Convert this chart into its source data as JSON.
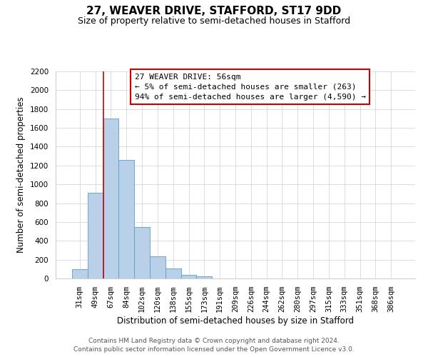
{
  "title": "27, WEAVER DRIVE, STAFFORD, ST17 9DD",
  "subtitle": "Size of property relative to semi-detached houses in Stafford",
  "xlabel": "Distribution of semi-detached houses by size in Stafford",
  "ylabel": "Number of semi-detached properties",
  "categories": [
    "31sqm",
    "49sqm",
    "67sqm",
    "84sqm",
    "102sqm",
    "120sqm",
    "138sqm",
    "155sqm",
    "173sqm",
    "191sqm",
    "209sqm",
    "226sqm",
    "244sqm",
    "262sqm",
    "280sqm",
    "297sqm",
    "315sqm",
    "333sqm",
    "351sqm",
    "368sqm",
    "386sqm"
  ],
  "values": [
    97,
    912,
    1700,
    1258,
    545,
    232,
    103,
    40,
    22,
    0,
    0,
    0,
    0,
    0,
    0,
    0,
    0,
    0,
    0,
    0,
    0
  ],
  "bar_color": "#b8d0e8",
  "bar_edge_color": "#5a9dc8",
  "vline_color": "#cc0000",
  "vline_position": 1.5,
  "ylim": [
    0,
    2200
  ],
  "yticks": [
    0,
    200,
    400,
    600,
    800,
    1000,
    1200,
    1400,
    1600,
    1800,
    2000,
    2200
  ],
  "annotation_line1": "27 WEAVER DRIVE: 56sqm",
  "annotation_line2": "← 5% of semi-detached houses are smaller (263)",
  "annotation_line3": "94% of semi-detached houses are larger (4,590) →",
  "footer1": "Contains HM Land Registry data © Crown copyright and database right 2024.",
  "footer2": "Contains public sector information licensed under the Open Government Licence v3.0.",
  "background_color": "#ffffff",
  "grid_color": "#d0d0d0",
  "title_fontsize": 11,
  "subtitle_fontsize": 9,
  "axis_label_fontsize": 8.5,
  "tick_fontsize": 7.5,
  "annotation_fontsize": 8,
  "footer_fontsize": 6.5
}
